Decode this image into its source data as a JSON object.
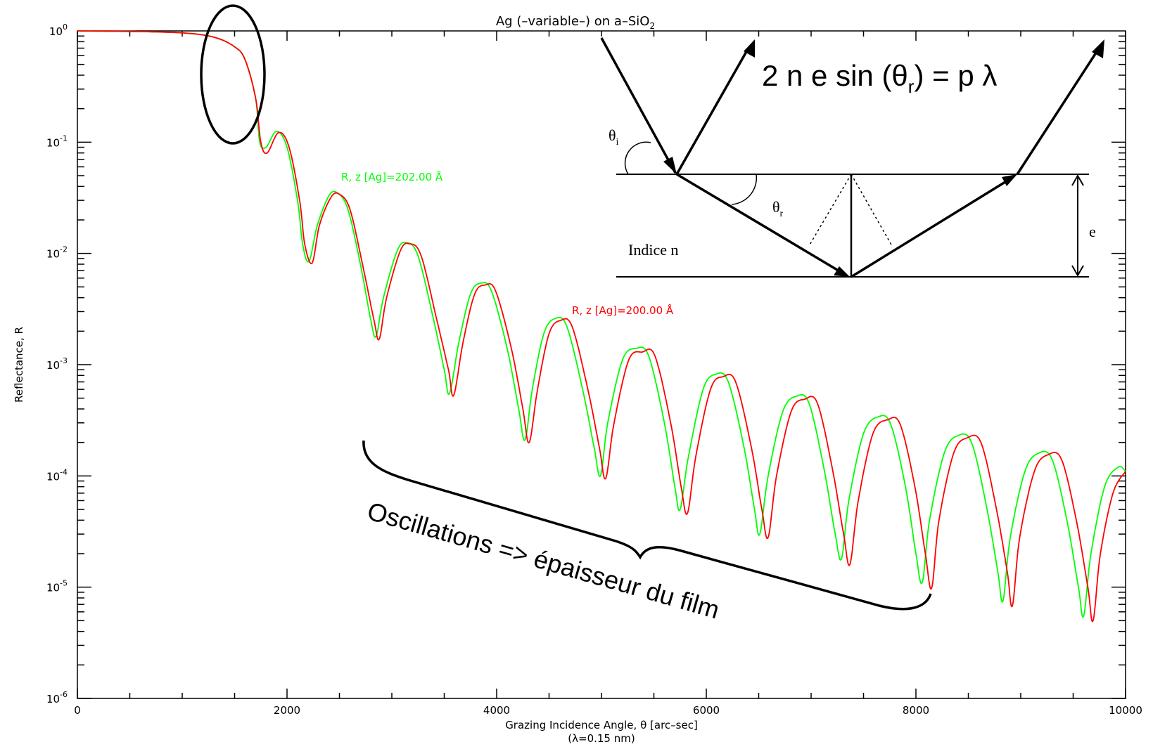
{
  "chart_data": {
    "type": "line",
    "title_main": "Ag (–variable–) on a–SiO",
    "title_sub": "2",
    "xlabel_line1": "Grazing Incidence Angle, θ [arc–sec]",
    "xlabel_line2": "(λ=0.15 nm)",
    "ylabel": "Reflectance, R",
    "xlim": [
      0,
      10000
    ],
    "ylim": [
      1e-06,
      1
    ],
    "yscale": "log",
    "x_ticks": [
      "0",
      "2000",
      "4000",
      "6000",
      "8000",
      "10000"
    ],
    "y_ticks": [
      {
        "base": "10",
        "exp": "0"
      },
      {
        "base": "10",
        "exp": "-1"
      },
      {
        "base": "10",
        "exp": "-2"
      },
      {
        "base": "10",
        "exp": "-3"
      },
      {
        "base": "10",
        "exp": "-4"
      },
      {
        "base": "10",
        "exp": "-5"
      },
      {
        "base": "10",
        "exp": "-6"
      }
    ],
    "series": [
      {
        "name": "R, z [Ag]=202.00 Å",
        "color": "#00ff00",
        "points": [
          [
            0,
            1.0
          ],
          [
            500,
            0.99
          ],
          [
            1000,
            0.96
          ],
          [
            1300,
            0.88
          ],
          [
            1500,
            0.72
          ],
          [
            1600,
            0.55
          ],
          [
            1700,
            0.25
          ],
          [
            1740,
            0.1
          ],
          [
            1800,
            0.09
          ],
          [
            1900,
            0.125
          ],
          [
            2000,
            0.09
          ],
          [
            2100,
            0.03
          ],
          [
            2150,
            0.012
          ],
          [
            2210,
            0.0085
          ],
          [
            2290,
            0.018
          ],
          [
            2400,
            0.033
          ],
          [
            2480,
            0.035
          ],
          [
            2580,
            0.025
          ],
          [
            2700,
            0.008
          ],
          [
            2800,
            0.0025
          ],
          [
            2850,
            0.0018
          ],
          [
            2920,
            0.004
          ],
          [
            3050,
            0.0105
          ],
          [
            3140,
            0.0125
          ],
          [
            3250,
            0.0095
          ],
          [
            3400,
            0.0025
          ],
          [
            3500,
            0.0009
          ],
          [
            3550,
            0.00055
          ],
          [
            3640,
            0.0016
          ],
          [
            3750,
            0.0043
          ],
          [
            3850,
            0.0054
          ],
          [
            3950,
            0.0046
          ],
          [
            4100,
            0.0014
          ],
          [
            4210,
            0.0004
          ],
          [
            4270,
            0.00021
          ],
          [
            4340,
            0.0006
          ],
          [
            4450,
            0.0019
          ],
          [
            4560,
            0.0026
          ],
          [
            4670,
            0.0022
          ],
          [
            4820,
            0.0006
          ],
          [
            4930,
            0.00018
          ],
          [
            4990,
            0.0001
          ],
          [
            5060,
            0.0003
          ],
          [
            5200,
            0.0011
          ],
          [
            5330,
            0.0014
          ],
          [
            5450,
            0.0012
          ],
          [
            5600,
            0.0003
          ],
          [
            5700,
            8e-05
          ],
          [
            5750,
            5e-05
          ],
          [
            5830,
            0.00015
          ],
          [
            5970,
            0.0006
          ],
          [
            6090,
            0.00082
          ],
          [
            6210,
            0.0007
          ],
          [
            6360,
            0.00018
          ],
          [
            6460,
            5e-05
          ],
          [
            6510,
            3e-05
          ],
          [
            6590,
            0.0001
          ],
          [
            6730,
            0.00038
          ],
          [
            6860,
            0.00052
          ],
          [
            6980,
            0.00045
          ],
          [
            7120,
            0.00012
          ],
          [
            7230,
            3e-05
          ],
          [
            7290,
            1.8e-05
          ],
          [
            7360,
            6e-05
          ],
          [
            7500,
            0.00024
          ],
          [
            7640,
            0.00034
          ],
          [
            7760,
            0.00029
          ],
          [
            7900,
            8e-05
          ],
          [
            8000,
            2e-05
          ],
          [
            8060,
            1.1e-05
          ],
          [
            8130,
            4e-05
          ],
          [
            8270,
            0.00016
          ],
          [
            8400,
            0.00023
          ],
          [
            8530,
            0.0002
          ],
          [
            8670,
            5.5e-05
          ],
          [
            8780,
            1.4e-05
          ],
          [
            8830,
            7.5e-06
          ],
          [
            8900,
            2.8e-05
          ],
          [
            9040,
            0.00011
          ],
          [
            9170,
            0.00016
          ],
          [
            9300,
            0.00014
          ],
          [
            9440,
            4e-05
          ],
          [
            9550,
            1e-05
          ],
          [
            9600,
            5.5e-06
          ],
          [
            9670,
            2e-05
          ],
          [
            9800,
            8e-05
          ],
          [
            9930,
            0.00012
          ],
          [
            10000,
            0.00011
          ]
        ]
      },
      {
        "name": "R, z [Ag]=200.00 Å",
        "color": "#ff0000",
        "points": [
          [
            0,
            1.0
          ],
          [
            500,
            0.99
          ],
          [
            1000,
            0.96
          ],
          [
            1300,
            0.88
          ],
          [
            1500,
            0.72
          ],
          [
            1600,
            0.55
          ],
          [
            1700,
            0.25
          ],
          [
            1750,
            0.1
          ],
          [
            1810,
            0.08
          ],
          [
            1920,
            0.122
          ],
          [
            2020,
            0.09
          ],
          [
            2120,
            0.03
          ],
          [
            2170,
            0.012
          ],
          [
            2240,
            0.0082
          ],
          [
            2310,
            0.018
          ],
          [
            2420,
            0.032
          ],
          [
            2500,
            0.034
          ],
          [
            2600,
            0.025
          ],
          [
            2720,
            0.008
          ],
          [
            2830,
            0.0025
          ],
          [
            2880,
            0.0017
          ],
          [
            2950,
            0.004
          ],
          [
            3080,
            0.0105
          ],
          [
            3170,
            0.0122
          ],
          [
            3280,
            0.0095
          ],
          [
            3430,
            0.0025
          ],
          [
            3540,
            0.0009
          ],
          [
            3590,
            0.00053
          ],
          [
            3680,
            0.0016
          ],
          [
            3790,
            0.0043
          ],
          [
            3890,
            0.0052
          ],
          [
            3990,
            0.0046
          ],
          [
            4140,
            0.0014
          ],
          [
            4250,
            0.0004
          ],
          [
            4310,
            0.0002
          ],
          [
            4390,
            0.0006
          ],
          [
            4500,
            0.0019
          ],
          [
            4610,
            0.0025
          ],
          [
            4720,
            0.0022
          ],
          [
            4870,
            0.0006
          ],
          [
            4980,
            0.00018
          ],
          [
            5040,
            9.5e-05
          ],
          [
            5120,
            0.0003
          ],
          [
            5260,
            0.0011
          ],
          [
            5390,
            0.0013
          ],
          [
            5510,
            0.0012
          ],
          [
            5660,
            0.0003
          ],
          [
            5760,
            8e-05
          ],
          [
            5820,
            4.6e-05
          ],
          [
            5900,
            0.00015
          ],
          [
            6040,
            0.0006
          ],
          [
            6160,
            0.00078
          ],
          [
            6280,
            0.0007
          ],
          [
            6430,
            0.00018
          ],
          [
            6530,
            5e-05
          ],
          [
            6590,
            2.8e-05
          ],
          [
            6670,
            0.0001
          ],
          [
            6810,
            0.00038
          ],
          [
            6940,
            0.00049
          ],
          [
            7060,
            0.00045
          ],
          [
            7200,
            0.00012
          ],
          [
            7310,
            3e-05
          ],
          [
            7370,
            1.6e-05
          ],
          [
            7450,
            6e-05
          ],
          [
            7590,
            0.00024
          ],
          [
            7730,
            0.00032
          ],
          [
            7850,
            0.00029
          ],
          [
            7990,
            8e-05
          ],
          [
            8090,
            2e-05
          ],
          [
            8150,
            9.8e-06
          ],
          [
            8220,
            4e-05
          ],
          [
            8360,
            0.00016
          ],
          [
            8490,
            0.00022
          ],
          [
            8620,
            0.0002
          ],
          [
            8760,
            5.5e-05
          ],
          [
            8870,
            1.4e-05
          ],
          [
            8920,
            6.8e-06
          ],
          [
            8990,
            2.8e-05
          ],
          [
            9130,
            0.00011
          ],
          [
            9260,
            0.000155
          ],
          [
            9390,
            0.00014
          ],
          [
            9530,
            4e-05
          ],
          [
            9640,
            1e-05
          ],
          [
            9690,
            5e-06
          ],
          [
            9760,
            2e-05
          ],
          [
            9880,
            7e-05
          ],
          [
            10000,
            0.00011
          ]
        ]
      }
    ]
  },
  "annotations": {
    "formula_left": "2 n e sin (θ",
    "formula_sub": "r",
    "formula_right": ") = p λ",
    "theta_i": "θ",
    "theta_i_sub": "i",
    "theta_r": "θ",
    "theta_r_sub": "r",
    "indice": "Indice n",
    "thickness": "e",
    "oscillations": "Oscillations => épaisseur du film"
  }
}
